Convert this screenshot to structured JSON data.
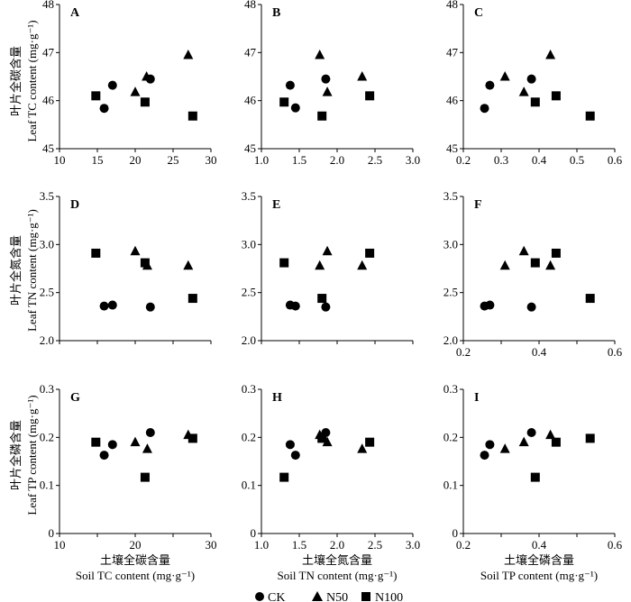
{
  "legend": {
    "ck": "CK",
    "n50": "N50",
    "n100": "N100"
  },
  "x_axes": [
    {
      "cn": "土壤全碳含量",
      "en": "Soil TC content (mg·g⁻¹)"
    },
    {
      "cn": "土壤全氮含量",
      "en": "Soil TN content (mg·g⁻¹)"
    },
    {
      "cn": "土壤全磷含量",
      "en": "Soil TP content (mg·g⁻¹)"
    }
  ],
  "y_axes": [
    {
      "cn": "叶片全碳含量",
      "en": "Leaf TC content (mg·g⁻¹)"
    },
    {
      "cn": "叶片全氮含量",
      "en": "Leaf TN content (mg·g⁻¹)"
    },
    {
      "cn": "叶片全磷含量",
      "en": "Leaf TP content (mg·g⁻¹)"
    }
  ],
  "chart_data": [
    {
      "type": "scatter",
      "panel": "A",
      "xlim": [
        10,
        30
      ],
      "ylim": [
        45,
        48
      ],
      "xticks": [
        "10",
        "15",
        "20",
        "25",
        "30"
      ],
      "yticks": [
        "45",
        "46",
        "47",
        "48"
      ],
      "series": [
        {
          "name": "CK",
          "marker": "circle",
          "points": [
            [
              15.9,
              45.84
            ],
            [
              17.0,
              46.32
            ],
            [
              22.0,
              46.45
            ]
          ]
        },
        {
          "name": "N50",
          "marker": "triangle",
          "points": [
            [
              20.0,
              46.18
            ],
            [
              21.5,
              46.5
            ],
            [
              27.0,
              46.95
            ]
          ]
        },
        {
          "name": "N100",
          "marker": "square",
          "points": [
            [
              14.8,
              46.1
            ],
            [
              21.3,
              45.97
            ],
            [
              27.6,
              45.68
            ]
          ]
        }
      ]
    },
    {
      "type": "scatter",
      "panel": "B",
      "xlim": [
        1.0,
        3.0
      ],
      "ylim": [
        45,
        48
      ],
      "xticks": [
        "1.0",
        "1.5",
        "2.0",
        "2.5",
        "3.0"
      ],
      "yticks": [
        "45",
        "46",
        "47",
        "48"
      ],
      "series": [
        {
          "name": "CK",
          "marker": "circle",
          "points": [
            [
              1.38,
              46.32
            ],
            [
              1.45,
              45.85
            ],
            [
              1.85,
              46.45
            ]
          ]
        },
        {
          "name": "N50",
          "marker": "triangle",
          "points": [
            [
              1.77,
              46.95
            ],
            [
              1.87,
              46.18
            ],
            [
              2.33,
              46.5
            ]
          ]
        },
        {
          "name": "N100",
          "marker": "square",
          "points": [
            [
              1.3,
              45.97
            ],
            [
              1.8,
              45.68
            ],
            [
              2.43,
              46.1
            ]
          ]
        }
      ]
    },
    {
      "type": "scatter",
      "panel": "C",
      "xlim": [
        0.2,
        0.6
      ],
      "ylim": [
        45,
        48
      ],
      "xticks": [
        "0.2",
        "0.3",
        "0.4",
        "0.5",
        "0.6"
      ],
      "yticks": [
        "45",
        "46",
        "47",
        "48"
      ],
      "series": [
        {
          "name": "CK",
          "marker": "circle",
          "points": [
            [
              0.256,
              45.84
            ],
            [
              0.27,
              46.32
            ],
            [
              0.38,
              46.45
            ]
          ]
        },
        {
          "name": "N50",
          "marker": "triangle",
          "points": [
            [
              0.31,
              46.5
            ],
            [
              0.36,
              46.18
            ],
            [
              0.43,
              46.95
            ]
          ]
        },
        {
          "name": "N100",
          "marker": "square",
          "points": [
            [
              0.39,
              45.97
            ],
            [
              0.445,
              46.1
            ],
            [
              0.535,
              45.68
            ]
          ]
        }
      ]
    },
    {
      "type": "scatter",
      "panel": "D",
      "xlim": [
        10,
        30
      ],
      "ylim": [
        2.0,
        3.5
      ],
      "xticks": [],
      "yticks": [
        "2.0",
        "2.5",
        "3.0",
        "3.5"
      ],
      "series": [
        {
          "name": "CK",
          "marker": "circle",
          "points": [
            [
              15.9,
              2.36
            ],
            [
              17.0,
              2.37
            ],
            [
              22.0,
              2.35
            ]
          ]
        },
        {
          "name": "N50",
          "marker": "triangle",
          "points": [
            [
              20.0,
              2.93
            ],
            [
              21.6,
              2.78
            ],
            [
              27.0,
              2.78
            ]
          ]
        },
        {
          "name": "N100",
          "marker": "square",
          "points": [
            [
              14.8,
              2.91
            ],
            [
              21.3,
              2.81
            ],
            [
              27.6,
              2.44
            ]
          ]
        }
      ]
    },
    {
      "type": "scatter",
      "panel": "E",
      "xlim": [
        1.0,
        3.0
      ],
      "ylim": [
        2.0,
        3.5
      ],
      "xticks": [],
      "yticks": [
        "2.0",
        "2.5",
        "3.0",
        "3.5"
      ],
      "series": [
        {
          "name": "CK",
          "marker": "circle",
          "points": [
            [
              1.38,
              2.37
            ],
            [
              1.45,
              2.36
            ],
            [
              1.85,
              2.35
            ]
          ]
        },
        {
          "name": "N50",
          "marker": "triangle",
          "points": [
            [
              1.77,
              2.78
            ],
            [
              1.87,
              2.93
            ],
            [
              2.33,
              2.78
            ]
          ]
        },
        {
          "name": "N100",
          "marker": "square",
          "points": [
            [
              1.3,
              2.81
            ],
            [
              1.8,
              2.44
            ],
            [
              2.43,
              2.91
            ]
          ]
        }
      ]
    },
    {
      "type": "scatter",
      "panel": "F",
      "xlim": [
        0.2,
        0.6
      ],
      "ylim": [
        2.0,
        3.5
      ],
      "xticks": [
        "0.2",
        "",
        "0.4",
        "",
        "0.6"
      ],
      "yticks": [
        "2.0",
        "2.5",
        "3.0",
        "3.5"
      ],
      "series": [
        {
          "name": "CK",
          "marker": "circle",
          "points": [
            [
              0.256,
              2.36
            ],
            [
              0.27,
              2.37
            ],
            [
              0.38,
              2.35
            ]
          ]
        },
        {
          "name": "N50",
          "marker": "triangle",
          "points": [
            [
              0.31,
              2.78
            ],
            [
              0.36,
              2.93
            ],
            [
              0.43,
              2.78
            ]
          ]
        },
        {
          "name": "N100",
          "marker": "square",
          "points": [
            [
              0.39,
              2.81
            ],
            [
              0.445,
              2.91
            ],
            [
              0.535,
              2.44
            ]
          ]
        }
      ]
    },
    {
      "type": "scatter",
      "panel": "G",
      "xlim": [
        10,
        30
      ],
      "ylim": [
        0,
        0.3
      ],
      "xticks": [
        "10",
        "",
        "20",
        "",
        "30"
      ],
      "yticks": [
        "0",
        "0.1",
        "0.2",
        "0.3"
      ],
      "series": [
        {
          "name": "CK",
          "marker": "circle",
          "points": [
            [
              15.9,
              0.163
            ],
            [
              17.0,
              0.185
            ],
            [
              22.0,
              0.21
            ]
          ]
        },
        {
          "name": "N50",
          "marker": "triangle",
          "points": [
            [
              20.0,
              0.19
            ],
            [
              21.6,
              0.176
            ],
            [
              27.0,
              0.205
            ]
          ]
        },
        {
          "name": "N100",
          "marker": "square",
          "points": [
            [
              14.8,
              0.19
            ],
            [
              21.3,
              0.117
            ],
            [
              27.6,
              0.198
            ]
          ]
        }
      ]
    },
    {
      "type": "scatter",
      "panel": "H",
      "xlim": [
        1.0,
        3.0
      ],
      "ylim": [
        0,
        0.3
      ],
      "xticks": [
        "1.0",
        "1.5",
        "2.0",
        "2.5",
        "3.0"
      ],
      "yticks": [
        "0",
        "0.1",
        "0.2",
        "0.3"
      ],
      "series": [
        {
          "name": "CK",
          "marker": "circle",
          "points": [
            [
              1.38,
              0.185
            ],
            [
              1.45,
              0.163
            ],
            [
              1.85,
              0.21
            ]
          ]
        },
        {
          "name": "N50",
          "marker": "triangle",
          "points": [
            [
              1.77,
              0.205
            ],
            [
              1.87,
              0.19
            ],
            [
              2.33,
              0.176
            ]
          ]
        },
        {
          "name": "N100",
          "marker": "square",
          "points": [
            [
              1.3,
              0.117
            ],
            [
              1.8,
              0.198
            ],
            [
              2.43,
              0.19
            ]
          ]
        }
      ]
    },
    {
      "type": "scatter",
      "panel": "I",
      "xlim": [
        0.2,
        0.6
      ],
      "ylim": [
        0,
        0.3
      ],
      "xticks": [
        "0.2",
        "",
        "0.4",
        "",
        "0.6"
      ],
      "yticks": [
        "0",
        "0.1",
        "0.2",
        "0.3"
      ],
      "series": [
        {
          "name": "CK",
          "marker": "circle",
          "points": [
            [
              0.256,
              0.163
            ],
            [
              0.27,
              0.185
            ],
            [
              0.38,
              0.21
            ]
          ]
        },
        {
          "name": "N50",
          "marker": "triangle",
          "points": [
            [
              0.31,
              0.176
            ],
            [
              0.36,
              0.19
            ],
            [
              0.43,
              0.205
            ]
          ]
        },
        {
          "name": "N100",
          "marker": "square",
          "points": [
            [
              0.39,
              0.117
            ],
            [
              0.445,
              0.19
            ],
            [
              0.535,
              0.198
            ]
          ]
        }
      ]
    }
  ]
}
